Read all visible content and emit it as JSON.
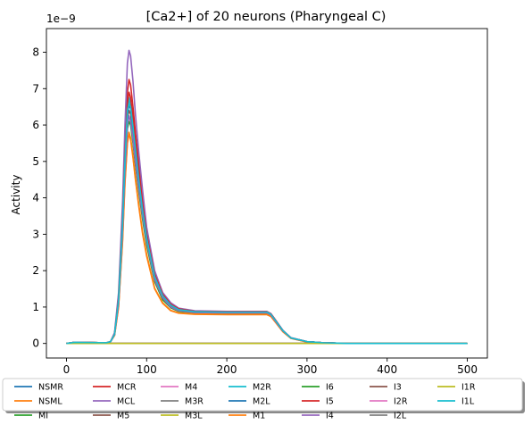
{
  "chart_data": {
    "type": "line",
    "title": "[Ca2+] of 20 neurons (Pharyngeal C)",
    "xlabel": "",
    "ylabel": "Activity",
    "scale_label": "1e−9",
    "xlim": [
      -25,
      525
    ],
    "ylim": [
      -0.4,
      8.65
    ],
    "x_ticks": [
      0,
      100,
      200,
      300,
      400,
      500
    ],
    "y_ticks": [
      0,
      1,
      2,
      3,
      4,
      5,
      6,
      7,
      8
    ],
    "legend_position": "below",
    "series": [
      {
        "name": "NSMR",
        "color": "#1f77b4",
        "x": [
          0,
          10,
          50,
          55,
          60,
          65,
          70,
          73,
          76,
          78,
          80,
          83,
          86,
          90,
          95,
          100,
          110,
          120,
          130,
          140,
          160,
          200,
          250,
          255,
          260,
          270,
          280,
          300,
          320,
          350,
          500
        ],
        "values": [
          0,
          0.03,
          0.02,
          0.05,
          0.25,
          1.2,
          3.2,
          5.0,
          6.4,
          6.7,
          6.6,
          6.1,
          5.5,
          4.7,
          3.8,
          3.0,
          1.9,
          1.35,
          1.08,
          0.95,
          0.88,
          0.86,
          0.86,
          0.8,
          0.65,
          0.35,
          0.15,
          0.05,
          0.02,
          0,
          0
        ]
      },
      {
        "name": "NSML",
        "color": "#ff7f0e",
        "x": [
          0,
          10,
          50,
          55,
          60,
          65,
          70,
          73,
          76,
          78,
          80,
          83,
          86,
          90,
          95,
          100,
          110,
          120,
          130,
          140,
          160,
          200,
          250,
          255,
          260,
          270,
          280,
          300,
          320,
          350,
          500
        ],
        "values": [
          0,
          0.03,
          0.02,
          0.05,
          0.22,
          1.0,
          2.8,
          4.4,
          5.5,
          5.75,
          5.6,
          5.1,
          4.5,
          3.8,
          3.0,
          2.4,
          1.5,
          1.1,
          0.9,
          0.83,
          0.8,
          0.79,
          0.79,
          0.74,
          0.6,
          0.32,
          0.14,
          0.04,
          0.02,
          0,
          0
        ]
      },
      {
        "name": "MI",
        "color": "#2ca02c",
        "x": [
          0,
          10,
          50,
          55,
          60,
          65,
          70,
          73,
          76,
          78,
          80,
          83,
          86,
          90,
          95,
          100,
          110,
          120,
          130,
          140,
          160,
          200,
          250,
          255,
          260,
          270,
          280,
          300,
          320,
          350,
          500
        ],
        "values": [
          0,
          0.03,
          0.02,
          0.05,
          0.24,
          1.1,
          3.1,
          4.7,
          5.9,
          6.1,
          6.0,
          5.5,
          4.9,
          4.2,
          3.4,
          2.7,
          1.7,
          1.2,
          0.98,
          0.88,
          0.84,
          0.83,
          0.83,
          0.77,
          0.63,
          0.34,
          0.15,
          0.05,
          0.02,
          0,
          0
        ]
      },
      {
        "name": "MCR",
        "color": "#d62728",
        "x": [
          0,
          10,
          50,
          55,
          60,
          65,
          70,
          73,
          76,
          78,
          80,
          83,
          86,
          90,
          95,
          100,
          110,
          120,
          130,
          140,
          160,
          200,
          250,
          255,
          260,
          270,
          280,
          300,
          320,
          350,
          500
        ],
        "values": [
          0,
          0.03,
          0.02,
          0.05,
          0.27,
          1.3,
          3.5,
          5.4,
          6.9,
          7.25,
          7.1,
          6.5,
          5.8,
          5.0,
          4.0,
          3.1,
          1.95,
          1.38,
          1.1,
          0.96,
          0.89,
          0.87,
          0.87,
          0.81,
          0.66,
          0.35,
          0.15,
          0.05,
          0.02,
          0,
          0
        ]
      },
      {
        "name": "MCL",
        "color": "#9467bd",
        "x": [
          0,
          10,
          50,
          55,
          60,
          65,
          70,
          73,
          76,
          78,
          80,
          83,
          86,
          90,
          95,
          100,
          110,
          120,
          130,
          140,
          160,
          200,
          250,
          255,
          260,
          270,
          280,
          300,
          320,
          350,
          500
        ],
        "values": [
          0,
          0.03,
          0.02,
          0.05,
          0.3,
          1.4,
          3.9,
          6.0,
          7.7,
          8.05,
          7.9,
          7.2,
          6.3,
          5.3,
          4.2,
          3.2,
          2.0,
          1.4,
          1.12,
          0.97,
          0.9,
          0.88,
          0.88,
          0.82,
          0.67,
          0.36,
          0.16,
          0.05,
          0.02,
          0,
          0
        ]
      },
      {
        "name": "M5",
        "color": "#8c564b",
        "x": [
          0,
          10,
          50,
          55,
          60,
          65,
          70,
          73,
          76,
          78,
          80,
          83,
          86,
          90,
          95,
          100,
          110,
          120,
          130,
          140,
          160,
          200,
          250,
          255,
          260,
          270,
          280,
          300,
          320,
          350,
          500
        ],
        "values": [
          0,
          0.03,
          0.02,
          0.05,
          0.25,
          1.15,
          3.2,
          4.9,
          6.2,
          6.4,
          6.3,
          5.8,
          5.2,
          4.4,
          3.6,
          2.9,
          1.8,
          1.3,
          1.04,
          0.92,
          0.87,
          0.85,
          0.85,
          0.79,
          0.64,
          0.34,
          0.15,
          0.05,
          0.02,
          0,
          0
        ]
      },
      {
        "name": "M4",
        "color": "#e377c2",
        "x": [
          0,
          60,
          500
        ],
        "values": [
          0,
          0,
          0
        ]
      },
      {
        "name": "M3R",
        "color": "#7f7f7f",
        "x": [
          0,
          60,
          500
        ],
        "values": [
          0,
          0,
          0
        ]
      },
      {
        "name": "M3L",
        "color": "#bcbd22",
        "x": [
          0,
          60,
          500
        ],
        "values": [
          0,
          0,
          0
        ]
      },
      {
        "name": "M2R",
        "color": "#17becf",
        "x": [
          0,
          10,
          50,
          55,
          60,
          65,
          70,
          73,
          76,
          78,
          80,
          83,
          86,
          90,
          95,
          100,
          110,
          120,
          130,
          140,
          160,
          200,
          250,
          255,
          260,
          270,
          280,
          300,
          320,
          350,
          500
        ],
        "values": [
          0,
          0.03,
          0.02,
          0.05,
          0.26,
          1.2,
          3.3,
          5.1,
          6.5,
          6.75,
          6.6,
          6.0,
          5.4,
          4.6,
          3.7,
          2.9,
          1.85,
          1.32,
          1.06,
          0.94,
          0.88,
          0.86,
          0.86,
          0.8,
          0.65,
          0.35,
          0.15,
          0.05,
          0.02,
          0,
          0
        ]
      },
      {
        "name": "M2L",
        "color": "#1f77b4",
        "x": [
          0,
          10,
          50,
          55,
          60,
          65,
          70,
          73,
          76,
          78,
          80,
          83,
          86,
          90,
          95,
          100,
          110,
          120,
          130,
          140,
          160,
          200,
          250,
          255,
          260,
          270,
          280,
          300,
          320,
          350,
          500
        ],
        "values": [
          0,
          0.03,
          0.02,
          0.05,
          0.25,
          1.2,
          3.25,
          5.0,
          6.3,
          6.55,
          6.45,
          5.9,
          5.3,
          4.5,
          3.6,
          2.85,
          1.82,
          1.3,
          1.05,
          0.93,
          0.87,
          0.86,
          0.86,
          0.8,
          0.65,
          0.35,
          0.15,
          0.05,
          0.02,
          0,
          0
        ]
      },
      {
        "name": "M1",
        "color": "#ff7f0e",
        "x": [
          0,
          10,
          50,
          55,
          60,
          65,
          70,
          73,
          76,
          78,
          80,
          83,
          86,
          90,
          95,
          100,
          110,
          120,
          130,
          140,
          160,
          200,
          250,
          255,
          260,
          270,
          280,
          300,
          320,
          350,
          500
        ],
        "values": [
          0,
          0.03,
          0.02,
          0.05,
          0.22,
          1.0,
          2.85,
          4.45,
          5.55,
          5.8,
          5.65,
          5.15,
          4.55,
          3.85,
          3.05,
          2.45,
          1.52,
          1.12,
          0.91,
          0.84,
          0.81,
          0.8,
          0.8,
          0.75,
          0.61,
          0.32,
          0.14,
          0.04,
          0.02,
          0,
          0
        ]
      },
      {
        "name": "I6",
        "color": "#2ca02c",
        "x": [
          0,
          60,
          500
        ],
        "values": [
          0,
          0,
          0
        ]
      },
      {
        "name": "I5",
        "color": "#d62728",
        "x": [
          0,
          10,
          50,
          55,
          60,
          65,
          70,
          73,
          76,
          78,
          80,
          83,
          86,
          90,
          95,
          100,
          110,
          120,
          130,
          140,
          160,
          200,
          250,
          255,
          260,
          270,
          280,
          300,
          320,
          350,
          500
        ],
        "values": [
          0,
          0.03,
          0.02,
          0.05,
          0.26,
          1.25,
          3.4,
          5.2,
          6.6,
          6.9,
          6.75,
          6.2,
          5.5,
          4.7,
          3.8,
          3.0,
          1.9,
          1.35,
          1.08,
          0.95,
          0.88,
          0.87,
          0.87,
          0.81,
          0.66,
          0.35,
          0.15,
          0.05,
          0.02,
          0,
          0
        ]
      },
      {
        "name": "I4",
        "color": "#9467bd",
        "x": [
          0,
          10,
          50,
          55,
          60,
          65,
          70,
          73,
          76,
          78,
          80,
          83,
          86,
          90,
          95,
          100,
          110,
          120,
          130,
          140,
          160,
          200,
          250,
          255,
          260,
          270,
          280,
          300,
          320,
          350,
          500
        ],
        "values": [
          0,
          0.03,
          0.02,
          0.05,
          0.24,
          1.1,
          3.1,
          4.75,
          6.0,
          6.25,
          6.1,
          5.6,
          5.0,
          4.3,
          3.5,
          2.8,
          1.75,
          1.25,
          1.0,
          0.9,
          0.85,
          0.84,
          0.84,
          0.78,
          0.63,
          0.34,
          0.15,
          0.05,
          0.02,
          0,
          0
        ]
      },
      {
        "name": "I3",
        "color": "#8c564b",
        "x": [
          0,
          60,
          500
        ],
        "values": [
          0,
          0,
          0
        ]
      },
      {
        "name": "I2R",
        "color": "#e377c2",
        "x": [
          0,
          60,
          500
        ],
        "values": [
          0,
          0,
          0
        ]
      },
      {
        "name": "I2L",
        "color": "#7f7f7f",
        "x": [
          0,
          60,
          500
        ],
        "values": [
          0,
          0,
          0
        ]
      },
      {
        "name": "I1R",
        "color": "#bcbd22",
        "x": [
          0,
          60,
          500
        ],
        "values": [
          0,
          0,
          0
        ]
      },
      {
        "name": "I1L",
        "color": "#17becf",
        "x": [
          0,
          10,
          50,
          55,
          60,
          65,
          70,
          73,
          76,
          78,
          80,
          83,
          86,
          90,
          95,
          100,
          110,
          120,
          130,
          140,
          160,
          200,
          250,
          255,
          260,
          270,
          280,
          300,
          320,
          350,
          500
        ],
        "values": [
          0,
          0.03,
          0.02,
          0.05,
          0.25,
          1.2,
          3.3,
          5.05,
          6.4,
          6.6,
          6.5,
          5.95,
          5.35,
          4.55,
          3.65,
          2.9,
          1.84,
          1.31,
          1.05,
          0.93,
          0.87,
          0.86,
          0.86,
          0.8,
          0.65,
          0.35,
          0.15,
          0.05,
          0.02,
          0,
          0
        ]
      }
    ]
  }
}
